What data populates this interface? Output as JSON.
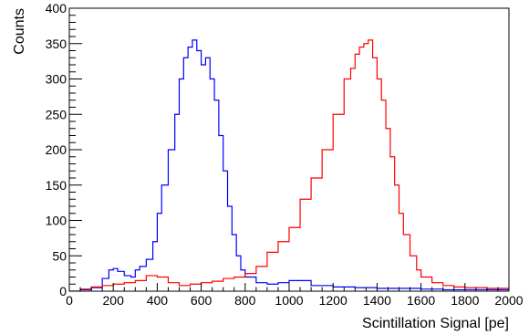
{
  "chart_data": {
    "type": "line",
    "xlabel": "Scintillation Signal [pe]",
    "ylabel": "Counts",
    "xlim": [
      0,
      2000
    ],
    "ylim": [
      0,
      400
    ],
    "x_major_ticks": [
      0,
      200,
      400,
      600,
      800,
      1000,
      1200,
      1400,
      1600,
      1800,
      2000
    ],
    "y_major_ticks": [
      0,
      50,
      100,
      150,
      200,
      250,
      300,
      350,
      400
    ],
    "x_tick_labels": [
      "0",
      "200",
      "400",
      "600",
      "800",
      "1000",
      "1200",
      "1400",
      "1600",
      "1800",
      "2000"
    ],
    "y_tick_labels": [
      "0",
      "50",
      "100",
      "150",
      "200",
      "250",
      "300",
      "350",
      "400"
    ],
    "histogram_style": "step",
    "grid": false,
    "legend": "none",
    "series": [
      {
        "color": "#0000ff",
        "x": [
          0,
          50,
          100,
          150,
          180,
          200,
          220,
          250,
          280,
          300,
          320,
          350,
          380,
          400,
          420,
          450,
          480,
          500,
          520,
          540,
          560,
          580,
          600,
          620,
          640,
          660,
          680,
          700,
          720,
          740,
          760,
          780,
          800,
          850,
          900,
          950,
          1000,
          1100,
          1200,
          1300,
          1400,
          1500,
          1600,
          1700,
          1800,
          1900,
          2000
        ],
        "y": [
          0,
          2,
          5,
          18,
          30,
          32,
          28,
          22,
          20,
          30,
          35,
          45,
          70,
          110,
          150,
          200,
          250,
          300,
          330,
          345,
          355,
          340,
          320,
          330,
          300,
          270,
          220,
          170,
          120,
          80,
          50,
          30,
          20,
          12,
          10,
          12,
          15,
          8,
          6,
          5,
          4,
          4,
          3,
          2,
          2,
          2,
          2
        ]
      },
      {
        "color": "#ff0000",
        "x": [
          0,
          50,
          100,
          150,
          200,
          250,
          300,
          350,
          400,
          450,
          500,
          550,
          600,
          650,
          700,
          750,
          800,
          850,
          900,
          950,
          1000,
          1050,
          1100,
          1150,
          1200,
          1250,
          1280,
          1300,
          1320,
          1340,
          1360,
          1380,
          1400,
          1420,
          1440,
          1460,
          1480,
          1500,
          1520,
          1550,
          1580,
          1600,
          1650,
          1700,
          1750,
          1800,
          1900,
          2000
        ],
        "y": [
          0,
          3,
          6,
          8,
          10,
          12,
          15,
          22,
          20,
          12,
          8,
          10,
          12,
          14,
          18,
          20,
          25,
          35,
          55,
          70,
          90,
          130,
          160,
          200,
          250,
          300,
          315,
          335,
          345,
          350,
          355,
          330,
          300,
          270,
          230,
          190,
          150,
          110,
          80,
          50,
          30,
          20,
          12,
          8,
          6,
          5,
          4,
          4
        ]
      }
    ]
  }
}
